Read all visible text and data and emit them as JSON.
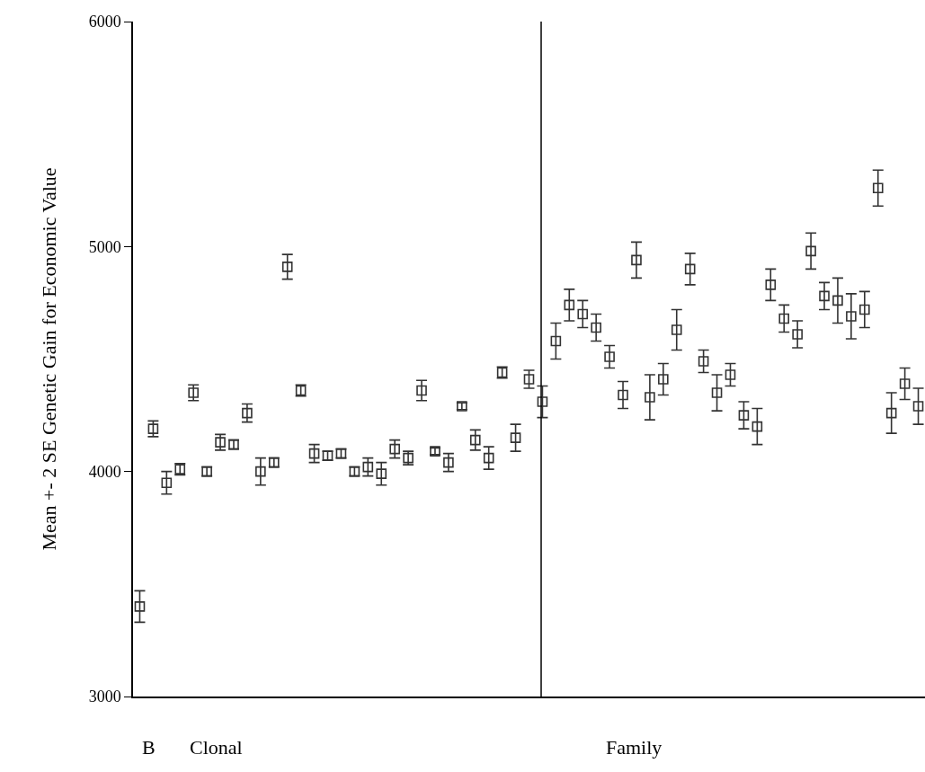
{
  "chart_data": {
    "type": "scatter",
    "ylabel": "Mean +- 2 SE Genetic Gain for Economic Value",
    "annotations": [
      "B",
      "Clonal",
      "Family"
    ],
    "categories": [
      null,
      null,
      null,
      null,
      null,
      null,
      null,
      null,
      null,
      null,
      null,
      null,
      null,
      null,
      null,
      null,
      null,
      null,
      null,
      null,
      null,
      null,
      null,
      null,
      null,
      null,
      null,
      null,
      null,
      null,
      null,
      null,
      null,
      null,
      null,
      null,
      null,
      null,
      null,
      null,
      null,
      null,
      null,
      null,
      null,
      null,
      null,
      null,
      null,
      null,
      null,
      null,
      null,
      null,
      null,
      null,
      null,
      null,
      null
    ],
    "values": [
      3400,
      4190,
      3950,
      4010,
      4350,
      4000,
      4130,
      4120,
      4260,
      4000,
      4040,
      4910,
      4360,
      4080,
      4070,
      4080,
      4000,
      4020,
      3990,
      4100,
      4060,
      4360,
      4090,
      4040,
      4290,
      4140,
      4060,
      4440,
      4150,
      4410,
      4310,
      4580,
      4740,
      4700,
      4640,
      4510,
      4340,
      4940,
      4330,
      4410,
      4630,
      4900,
      4490,
      4350,
      4430,
      4250,
      4200,
      4830,
      4680,
      4610,
      4980,
      4780,
      4760,
      4690,
      4720,
      5260,
      4260,
      4390,
      4290
    ],
    "errors": [
      70,
      35,
      50,
      25,
      35,
      20,
      35,
      20,
      40,
      60,
      20,
      55,
      25,
      40,
      20,
      20,
      20,
      40,
      50,
      40,
      30,
      45,
      15,
      40,
      15,
      45,
      50,
      25,
      60,
      40,
      70,
      80,
      70,
      60,
      60,
      50,
      60,
      80,
      100,
      70,
      90,
      70,
      50,
      80,
      50,
      60,
      80,
      70,
      60,
      60,
      80,
      60,
      100,
      100,
      80,
      80,
      90,
      70,
      80
    ],
    "color": "#333333",
    "marker": "square",
    "ylim": [
      3000,
      6000
    ],
    "yticks": [
      3000,
      4000,
      5000,
      6000
    ],
    "grid": false,
    "legend": false
  }
}
